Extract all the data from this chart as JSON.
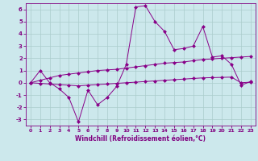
{
  "xlabel": "Windchill (Refroidissement éolien,°C)",
  "x": [
    0,
    1,
    2,
    3,
    4,
    5,
    6,
    7,
    8,
    9,
    10,
    11,
    12,
    13,
    14,
    15,
    16,
    17,
    18,
    19,
    20,
    21,
    22,
    23
  ],
  "line1": [
    0,
    1,
    0,
    -0.5,
    -1.2,
    -3.2,
    -0.6,
    -1.8,
    -1.2,
    -0.3,
    1.5,
    6.2,
    6.3,
    5.0,
    4.2,
    2.7,
    2.8,
    3.0,
    4.6,
    2.1,
    2.2,
    1.5,
    -0.2,
    0.1
  ],
  "line2": [
    0.0,
    0.2,
    0.4,
    0.6,
    0.7,
    0.8,
    0.9,
    1.0,
    1.05,
    1.1,
    1.2,
    1.3,
    1.4,
    1.5,
    1.6,
    1.65,
    1.7,
    1.8,
    1.9,
    1.95,
    2.0,
    2.05,
    2.1,
    2.15
  ],
  "line3": [
    0.0,
    -0.05,
    -0.1,
    -0.15,
    -0.2,
    -0.25,
    -0.2,
    -0.15,
    -0.1,
    -0.05,
    0.0,
    0.05,
    0.1,
    0.15,
    0.2,
    0.25,
    0.3,
    0.35,
    0.4,
    0.42,
    0.44,
    0.46,
    0.0,
    0.05
  ],
  "line_color": "#880088",
  "bg_color": "#cce8ec",
  "grid_color": "#aacccc",
  "ylim": [
    -3.5,
    6.5
  ],
  "xlim": [
    -0.5,
    23.5
  ],
  "yticks": [
    -3,
    -2,
    -1,
    0,
    1,
    2,
    3,
    4,
    5,
    6
  ],
  "xticks": [
    0,
    1,
    2,
    3,
    4,
    5,
    6,
    7,
    8,
    9,
    10,
    11,
    12,
    13,
    14,
    15,
    16,
    17,
    18,
    19,
    20,
    21,
    22,
    23
  ],
  "tick_color": "#800080",
  "label_color": "#800080",
  "markersize": 2.5
}
